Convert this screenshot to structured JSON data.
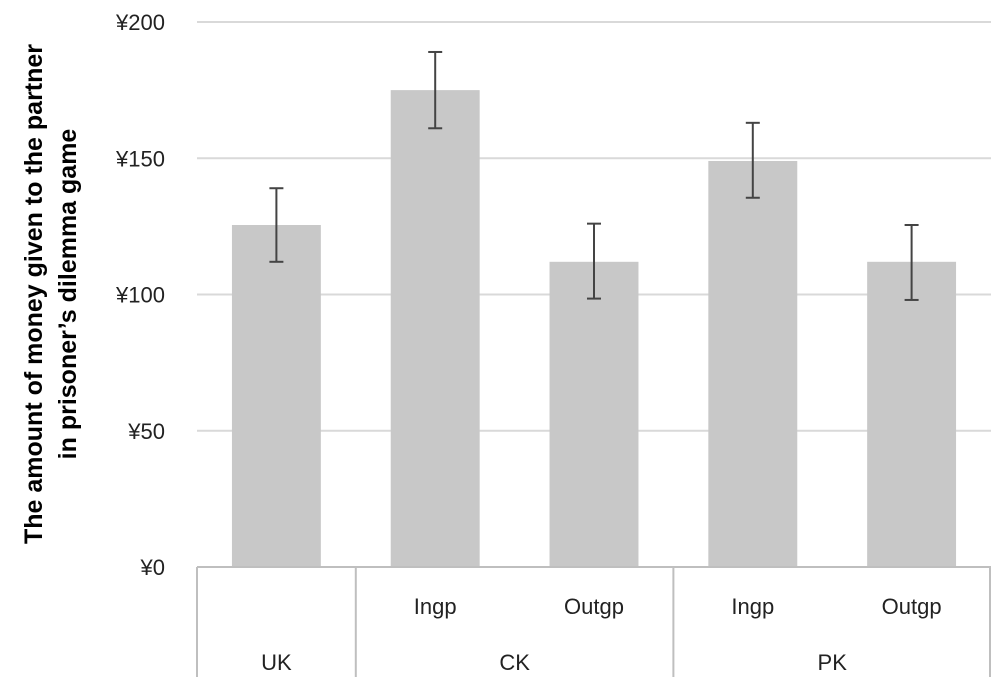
{
  "chart_data": {
    "type": "bar",
    "title": "",
    "ylabel_lines": [
      "The amount of money given to the partner",
      "in prisoner’s dilemma game"
    ],
    "ylim": [
      0,
      200
    ],
    "yticks": [
      0,
      50,
      100,
      150,
      200
    ],
    "ytick_labels": [
      "¥0",
      "¥50",
      "¥100",
      "¥150",
      "¥200"
    ],
    "bar_color": "#c8c8c8",
    "error_color": "#444444",
    "grid": true,
    "bars": [
      {
        "sub": "",
        "value": 125.5,
        "err_low": 112,
        "err_high": 139
      },
      {
        "sub": "Ingp",
        "value": 175,
        "err_low": 161,
        "err_high": 189
      },
      {
        "sub": "Outgp",
        "value": 112,
        "err_low": 98.5,
        "err_high": 126
      },
      {
        "sub": "Ingp",
        "value": 149,
        "err_low": 135.5,
        "err_high": 163
      },
      {
        "sub": "Outgp",
        "value": 112,
        "err_low": 98,
        "err_high": 125.5
      }
    ],
    "groups": [
      {
        "label": "UK",
        "span": 1
      },
      {
        "label": "CK",
        "span": 2
      },
      {
        "label": "PK",
        "span": 2
      }
    ]
  }
}
